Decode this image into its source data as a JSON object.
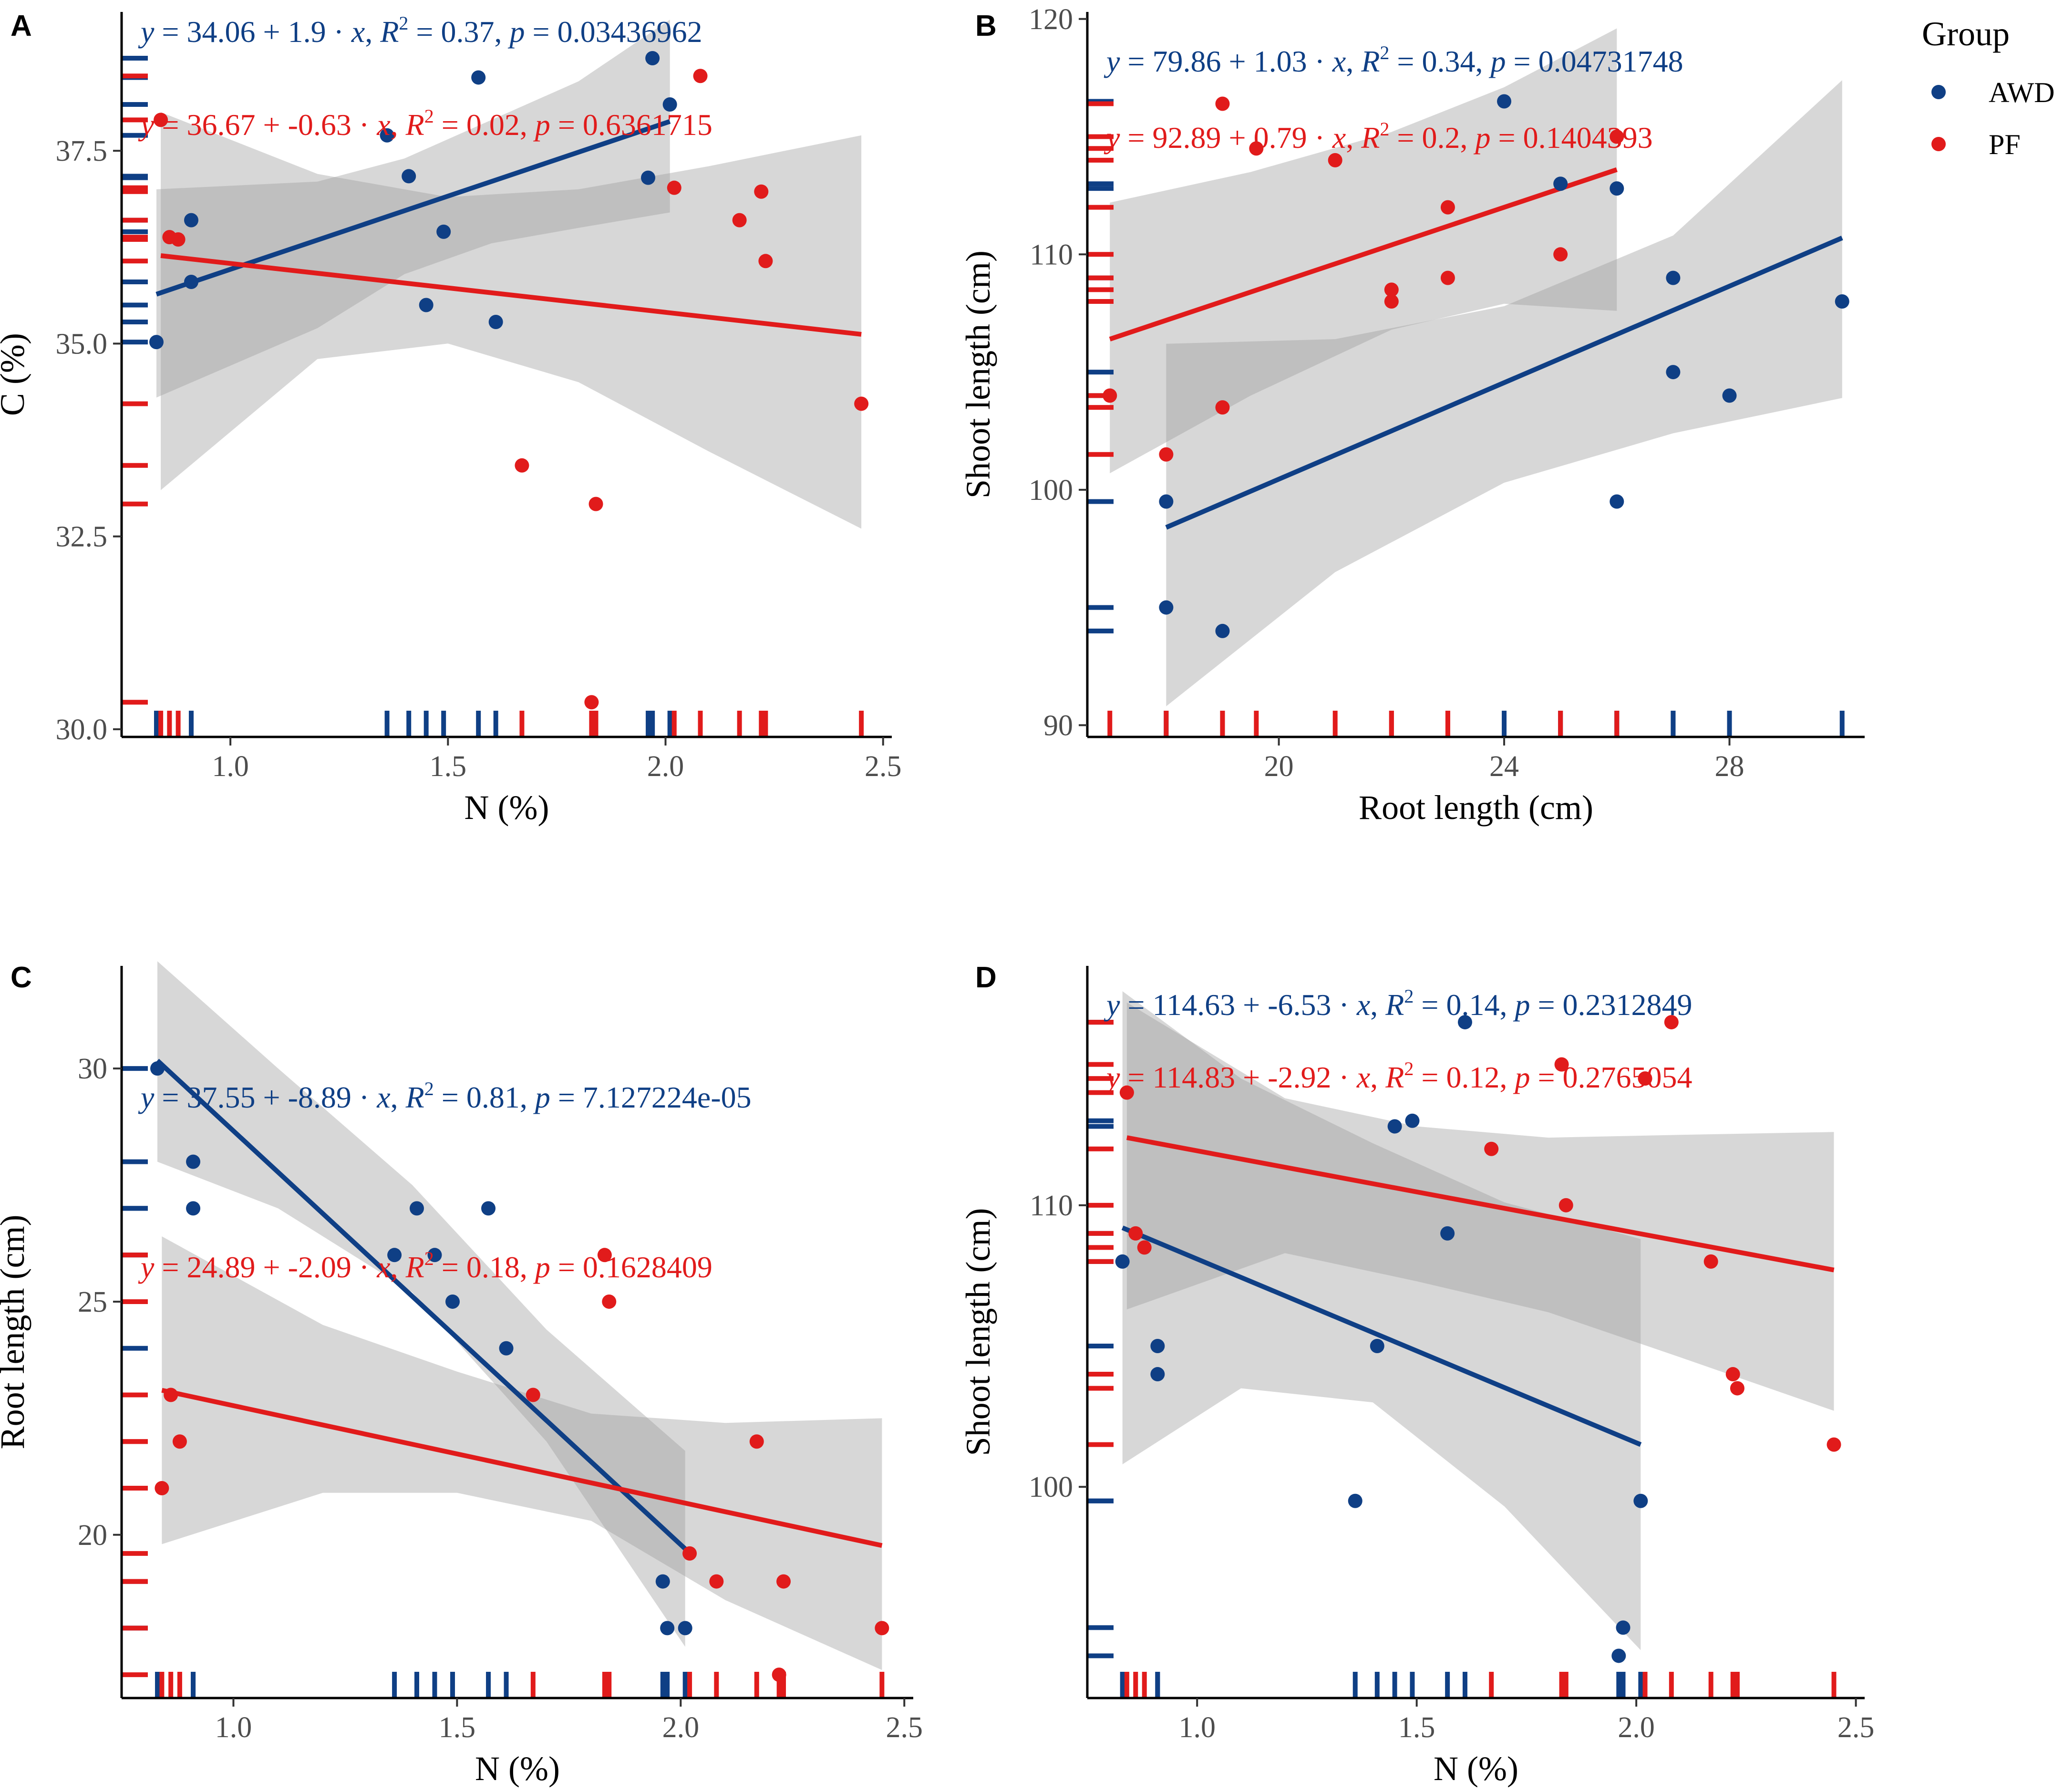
{
  "colors": {
    "AWD": "#0f3f85",
    "PF": "#e11b1b",
    "band": "#9a9a9a"
  },
  "legend": {
    "title": "Group",
    "items": [
      {
        "key": "AWD",
        "label": "AWD"
      },
      {
        "key": "PF",
        "label": "PF"
      }
    ]
  },
  "chart_data": [
    {
      "id": "A",
      "letter": "A",
      "type": "scatter",
      "xlabel": "N (%)",
      "ylabel": "C (%)",
      "xlim": [
        0.75,
        2.52
      ],
      "ylim": [
        29.9,
        39.3
      ],
      "xticks": [
        1.0,
        1.5,
        2.0,
        2.5
      ],
      "xtick_labels": [
        "1.0",
        "1.5",
        "2.0",
        "2.5"
      ],
      "yticks": [
        30.0,
        32.5,
        35.0,
        37.5
      ],
      "ytick_labels": [
        "30.0",
        "32.5",
        "35.0",
        "37.5"
      ],
      "series": [
        {
          "name": "AWD",
          "x": [
            0.83,
            0.91,
            0.91,
            1.36,
            1.41,
            1.45,
            1.49,
            1.57,
            1.61,
            1.96,
            1.97,
            2.01
          ],
          "y": [
            35.02,
            35.8,
            36.6,
            37.7,
            37.17,
            35.5,
            36.45,
            38.45,
            35.28,
            37.15,
            38.7,
            38.1
          ],
          "fit": {
            "x": [
              0.83,
              2.01
            ],
            "y": [
              35.64,
              37.88
            ]
          },
          "band": {
            "x": [
              0.83,
              1.2,
              1.4,
              1.6,
              1.8,
              2.01
            ],
            "upper": [
              37.0,
              37.1,
              37.4,
              37.9,
              38.4,
              39.2
            ],
            "lower": [
              34.3,
              35.2,
              35.9,
              36.3,
              36.5,
              36.7
            ]
          },
          "equation": {
            "a": "34.06",
            "b": "1.9",
            "r2": "0.37",
            "p": "0.03436962"
          }
        },
        {
          "name": "PF",
          "x": [
            0.84,
            0.86,
            0.88,
            1.67,
            1.83,
            1.84,
            2.02,
            2.08,
            2.17,
            2.22,
            2.23,
            2.45
          ],
          "y": [
            37.9,
            36.38,
            36.35,
            33.42,
            30.35,
            32.92,
            37.02,
            38.47,
            36.6,
            36.97,
            36.07,
            34.22
          ],
          "fit": {
            "x": [
              0.84,
              2.45
            ],
            "y": [
              36.14,
              35.12
            ]
          },
          "band": {
            "x": [
              0.84,
              1.2,
              1.5,
              1.8,
              2.1,
              2.45
            ],
            "upper": [
              38.0,
              37.2,
              36.9,
              37.0,
              37.3,
              37.7
            ],
            "lower": [
              33.1,
              34.8,
              35.0,
              34.5,
              33.6,
              32.6
            ]
          },
          "equation": {
            "a": "36.67",
            "b": "-0.63",
            "r2": "0.02",
            "p": "0.6361715"
          }
        }
      ]
    },
    {
      "id": "B",
      "letter": "B",
      "type": "scatter",
      "xlabel": "Root length (cm)",
      "ylabel": "Shoot length (cm)",
      "xlim": [
        16.6,
        30.4
      ],
      "ylim": [
        89.5,
        120.3
      ],
      "xticks": [
        20,
        24,
        28
      ],
      "xtick_labels": [
        "20",
        "24",
        "28"
      ],
      "yticks": [
        90,
        100,
        110,
        120
      ],
      "ytick_labels": [
        "90",
        "100",
        "110",
        "120"
      ],
      "series": [
        {
          "name": "AWD",
          "x": [
            18,
            18,
            19,
            24,
            25,
            26,
            26,
            27,
            27,
            28,
            30
          ],
          "y": [
            99.5,
            95,
            94,
            116.5,
            113,
            112.8,
            99.5,
            109,
            105,
            104,
            108
          ],
          "fit": {
            "x": [
              18,
              30
            ],
            "y": [
              98.4,
              110.7
            ]
          },
          "band": {
            "x": [
              18,
              21,
              24,
              27,
              30
            ],
            "upper": [
              106.2,
              106.4,
              107.8,
              110.8,
              117.4
            ],
            "lower": [
              90.8,
              96.5,
              100.3,
              102.4,
              103.9
            ]
          },
          "equation": {
            "a": "79.86",
            "b": "1.03",
            "r2": "0.34",
            "p": "0.04731748"
          }
        },
        {
          "name": "PF",
          "x": [
            17,
            18,
            19,
            19,
            19.6,
            21,
            22,
            22,
            23,
            23,
            25,
            26
          ],
          "y": [
            104,
            101.5,
            103.5,
            116.4,
            114.5,
            114,
            108.5,
            108,
            112,
            109,
            110,
            115
          ],
          "fit": {
            "x": [
              17,
              26
            ],
            "y": [
              106.4,
              113.6
            ]
          },
          "band": {
            "x": [
              17,
              19.5,
              22,
              24,
              26
            ],
            "upper": [
              112.2,
              113.5,
              115.2,
              117.1,
              119.6
            ],
            "lower": [
              100.7,
              104.0,
              106.8,
              107.9,
              107.6
            ]
          },
          "equation": {
            "a": "92.89",
            "b": "0.79",
            "r2": "0.2",
            "p": "0.1404393"
          }
        }
      ]
    },
    {
      "id": "C",
      "letter": "C",
      "type": "scatter",
      "xlabel": "N (%)",
      "ylabel": "Root length (cm)",
      "xlim": [
        0.75,
        2.52
      ],
      "ylim": [
        16.5,
        32.2
      ],
      "xticks": [
        1.0,
        1.5,
        2.0,
        2.5
      ],
      "xtick_labels": [
        "1.0",
        "1.5",
        "2.0",
        "2.5"
      ],
      "yticks": [
        20,
        25,
        30
      ],
      "ytick_labels": [
        "20",
        "25",
        "30"
      ],
      "series": [
        {
          "name": "AWD",
          "x": [
            0.83,
            0.91,
            0.91,
            1.36,
            1.41,
            1.45,
            1.49,
            1.57,
            1.61,
            1.96,
            1.97,
            2.01
          ],
          "y": [
            30,
            28,
            27,
            26,
            27,
            26,
            25,
            27,
            24,
            19,
            18,
            18
          ],
          "fit": {
            "x": [
              0.83,
              2.01
            ],
            "y": [
              30.17,
              19.7
            ]
          },
          "band": {
            "x": [
              0.83,
              1.1,
              1.4,
              1.7,
              2.01
            ],
            "upper": [
              32.3,
              30.0,
              27.5,
              24.4,
              21.8
            ],
            "lower": [
              28.0,
              27.0,
              25.2,
              22.0,
              17.6
            ]
          },
          "equation": {
            "a": "37.55",
            "b": "-8.89",
            "r2": "0.81",
            "p": "7.127224e-05"
          }
        },
        {
          "name": "PF",
          "x": [
            0.84,
            0.86,
            0.88,
            1.67,
            1.83,
            1.84,
            2.02,
            2.08,
            2.17,
            2.22,
            2.23,
            2.45
          ],
          "y": [
            21,
            23,
            22,
            23,
            26,
            25,
            19.6,
            19,
            22,
            17,
            19,
            18
          ],
          "fit": {
            "x": [
              0.84,
              2.45
            ],
            "y": [
              23.1,
              19.77
            ]
          },
          "band": {
            "x": [
              0.84,
              1.2,
              1.5,
              1.8,
              2.1,
              2.45
            ],
            "upper": [
              26.4,
              24.5,
              23.5,
              22.6,
              22.4,
              22.5
            ],
            "lower": [
              19.8,
              20.9,
              20.9,
              20.3,
              18.6,
              17.1
            ]
          },
          "equation": {
            "a": "24.89",
            "b": "-2.09",
            "r2": "0.18",
            "p": "0.1628409"
          }
        }
      ]
    },
    {
      "id": "D",
      "letter": "D",
      "type": "scatter",
      "xlabel": "N (%)",
      "ylabel": "Shoot length (cm)",
      "xlim": [
        0.75,
        2.52
      ],
      "ylim": [
        92.5,
        118.5
      ],
      "xticks": [
        1.0,
        1.5,
        2.0,
        2.5
      ],
      "xtick_labels": [
        "1.0",
        "1.5",
        "2.0",
        "2.5"
      ],
      "yticks": [
        100,
        110
      ],
      "ytick_labels": [
        "100",
        "110"
      ],
      "series": [
        {
          "name": "AWD",
          "x": [
            0.83,
            0.91,
            0.91,
            1.36,
            1.41,
            1.45,
            1.49,
            1.57,
            1.61,
            1.96,
            1.97,
            2.01
          ],
          "y": [
            108,
            105,
            104,
            99.5,
            105,
            112.8,
            113,
            109,
            116.5,
            94,
            95,
            99.5
          ],
          "fit": {
            "x": [
              0.83,
              2.01
            ],
            "y": [
              109.2,
              101.5
            ]
          },
          "band": {
            "x": [
              0.83,
              1.1,
              1.4,
              1.7,
              2.01
            ],
            "upper": [
              117.6,
              114.5,
              112.2,
              110.1,
              108.8
            ],
            "lower": [
              100.8,
              103.5,
              103.0,
              99.3,
              94.2
            ]
          },
          "equation": {
            "a": "114.63",
            "b": "-6.53",
            "r2": "0.14",
            "p": "0.2312849"
          }
        },
        {
          "name": "PF",
          "x": [
            0.84,
            0.86,
            0.88,
            1.67,
            1.83,
            1.84,
            2.02,
            2.08,
            2.17,
            2.22,
            2.23,
            2.45
          ],
          "y": [
            114,
            109,
            108.5,
            112,
            115,
            110,
            114.5,
            116.5,
            108,
            104,
            103.5,
            101.5
          ],
          "fit": {
            "x": [
              0.84,
              2.45
            ],
            "y": [
              112.4,
              107.7
            ]
          },
          "band": {
            "x": [
              0.84,
              1.2,
              1.5,
              1.8,
              2.1,
              2.45
            ],
            "upper": [
              117.2,
              113.8,
              112.8,
              112.4,
              112.5,
              112.6
            ],
            "lower": [
              106.3,
              108.3,
              107.3,
              106.2,
              104.6,
              102.7
            ]
          },
          "equation": {
            "a": "114.83",
            "b": "-2.92",
            "r2": "0.12",
            "p": "0.2765054"
          }
        }
      ]
    }
  ]
}
